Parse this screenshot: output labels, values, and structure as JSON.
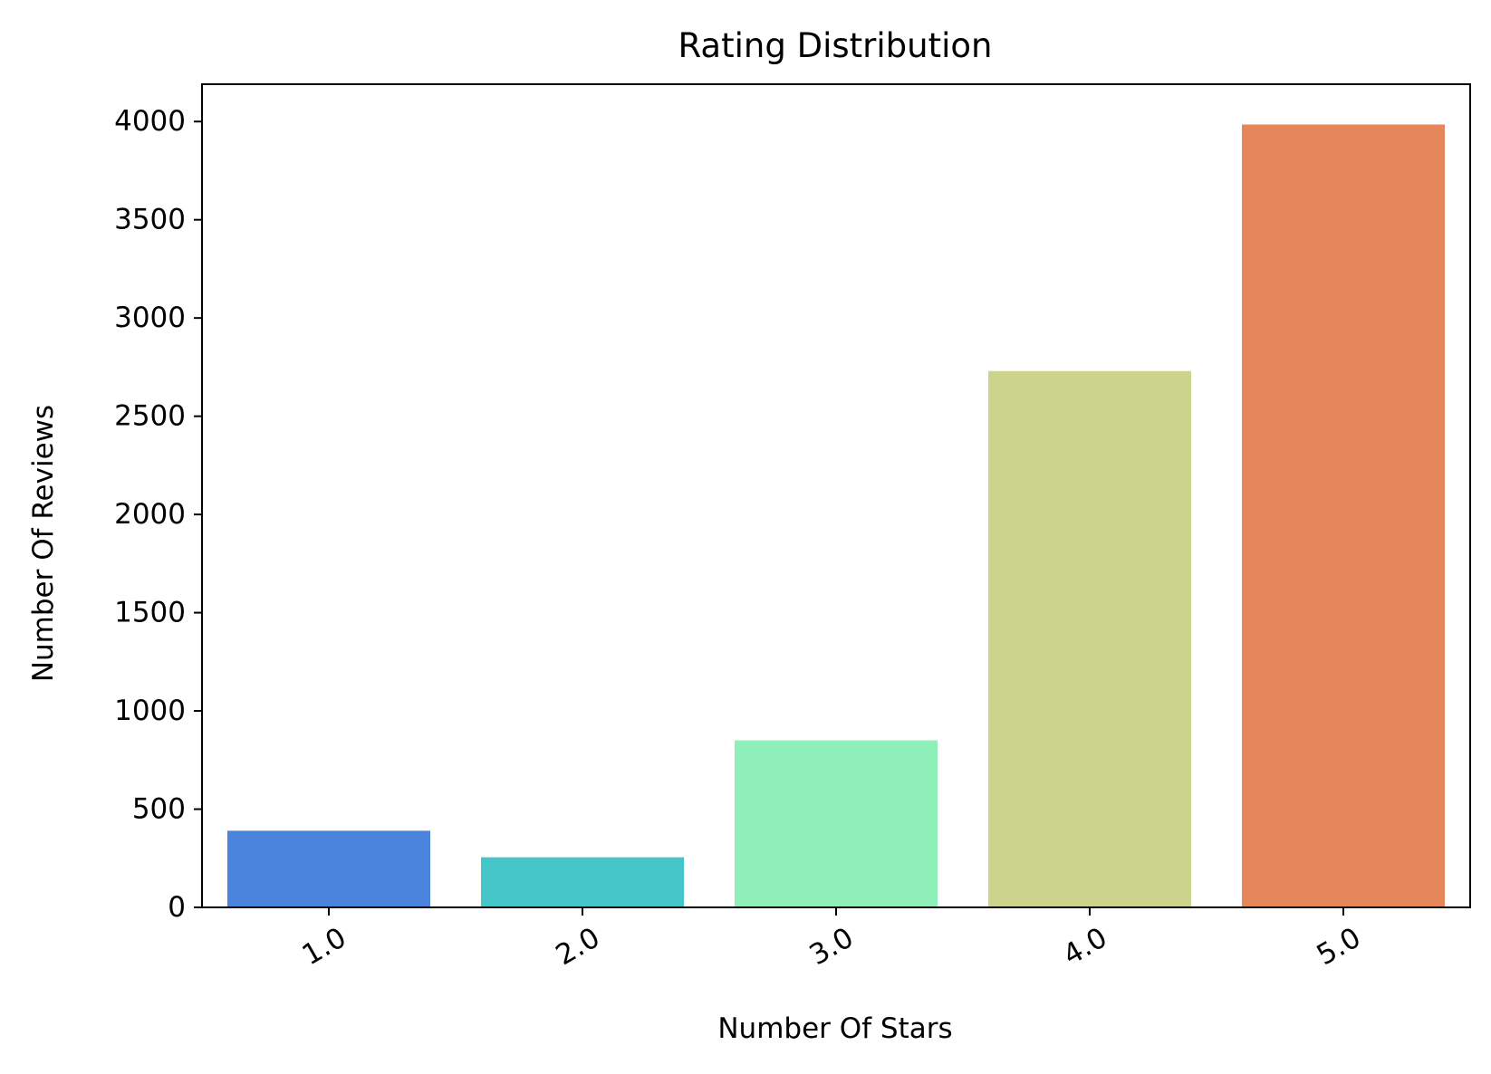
{
  "chart_data": {
    "type": "bar",
    "title": "Rating Distribution",
    "xlabel": "Number Of Stars",
    "ylabel": "Number Of Reviews",
    "categories": [
      "1.0",
      "2.0",
      "3.0",
      "4.0",
      "5.0"
    ],
    "values": [
      390,
      255,
      850,
      2730,
      3985
    ],
    "colors": [
      "#4a84dd",
      "#44c6c9",
      "#8fefb8",
      "#ccd38c",
      "#e6875b"
    ],
    "ylim": [
      0,
      4190
    ],
    "yticks": [
      0,
      500,
      1000,
      1500,
      2000,
      2500,
      3000,
      3500,
      4000
    ],
    "ytick_labels": [
      "0",
      "500",
      "1000",
      "1500",
      "2000",
      "2500",
      "3000",
      "3500",
      "4000"
    ],
    "xtick_rotation_deg": 30,
    "grid": false,
    "legend": "none"
  }
}
